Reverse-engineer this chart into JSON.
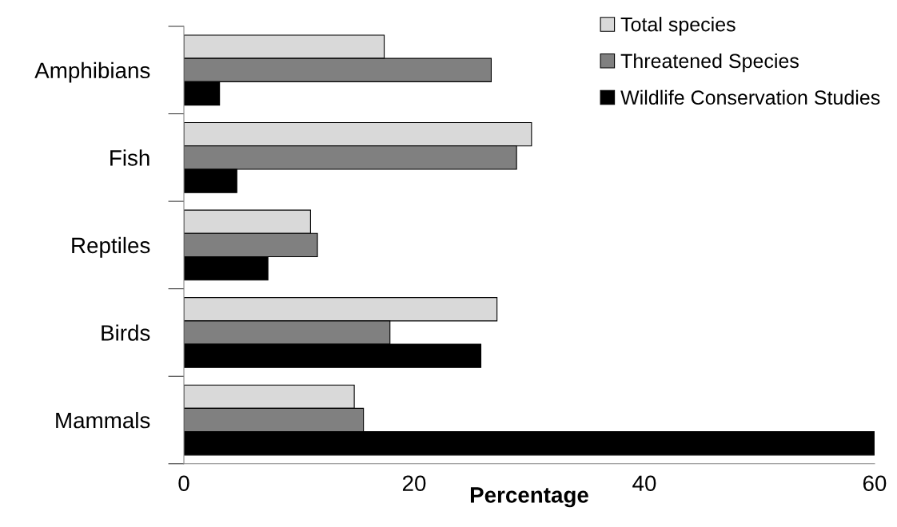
{
  "chart_data": {
    "type": "bar",
    "orientation": "horizontal",
    "xlabel": "Percentage",
    "categories": [
      "Amphibians",
      "Fish",
      "Reptiles",
      "Birds",
      "Mammals"
    ],
    "series": [
      {
        "name": "Total species",
        "color": "#d9d9d9",
        "values": [
          17.4,
          30.2,
          11.0,
          27.2,
          14.8
        ]
      },
      {
        "name": "Threatened Species",
        "color": "#808080",
        "values": [
          26.7,
          28.9,
          11.6,
          17.9,
          15.6
        ]
      },
      {
        "name": "Wildlife Conservation Studies",
        "color": "#000000",
        "values": [
          3.1,
          4.6,
          7.3,
          25.8,
          60.0
        ]
      }
    ],
    "xlim": [
      0,
      60
    ],
    "xticks": [
      0,
      20,
      40,
      60
    ],
    "grid": false,
    "legend": "top right"
  }
}
